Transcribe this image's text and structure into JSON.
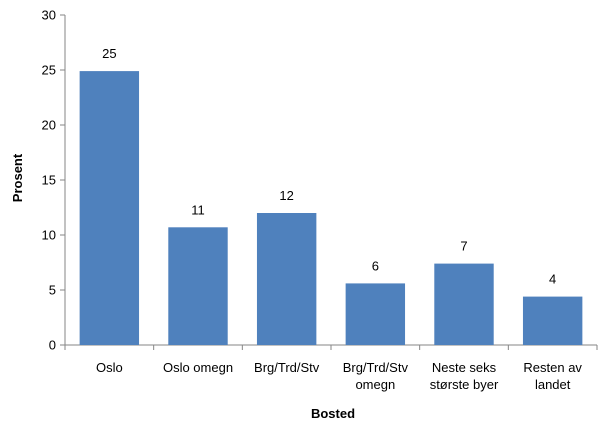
{
  "chart_data": {
    "type": "bar",
    "categories": [
      [
        "Oslo"
      ],
      [
        "Oslo omegn"
      ],
      [
        "Brg/Trd/Stv"
      ],
      [
        "Brg/Trd/Stv",
        "omegn"
      ],
      [
        "Neste seks",
        "største byer"
      ],
      [
        "Resten av",
        "landet"
      ]
    ],
    "values": [
      24.9,
      10.7,
      12.0,
      5.6,
      7.4,
      4.4
    ],
    "data_labels": [
      "25",
      "11",
      "12",
      "6",
      "7",
      "4"
    ],
    "xlabel": "Bosted",
    "ylabel": "Prosent",
    "ylim": [
      0,
      30
    ],
    "yticks": [
      0,
      5,
      10,
      15,
      20,
      25,
      30
    ],
    "grid": false,
    "bar_color": "#4F81BD"
  }
}
